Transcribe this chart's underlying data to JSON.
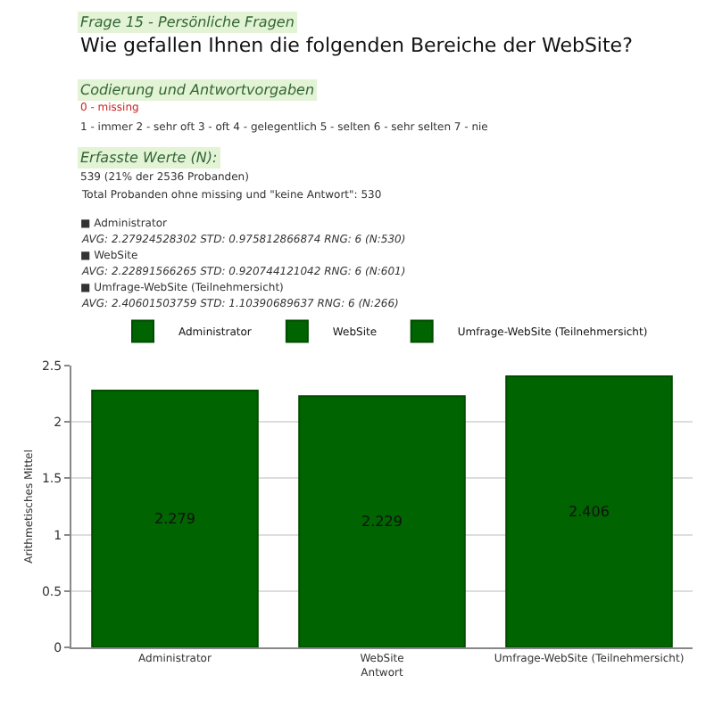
{
  "chart_data": {
    "type": "bar",
    "subtitle": "Frage 15 - Persönliche Fragen",
    "title": "Wie gefallen Ihnen die folgenden Bereiche der WebSite?",
    "annotations": [
      "Codierung und Antwortvorgaben",
      "0 - missing",
      "1 - immer 2 - sehr oft 3 - oft 4 - gelegentlich 5 - selten 6 - sehr selten 7 - nie",
      "Erfasste Werte (N):",
      "539 (21% der 2536 Probanden)",
      "Total Probanden ohne missing und \"keine Antwort\": 530",
      "■ Administrator",
      "AVG: 2.27924528302 STD: 0.975812866874 RNG: 6 (N:530)",
      "■ WebSite",
      "AVG: 2.22891566265 STD: 0.920744121042 RNG: 6 (N:601)",
      "■ Umfrage-WebSite (Teilnehmersicht)",
      "AVG: 2.40601503759 STD: 1.10390689637 RNG: 6 (N:266)"
    ],
    "categories": [
      "Administrator",
      "WebSite",
      "Umfrage-WebSite (Teilnehmersicht)"
    ],
    "series": [
      {
        "name": "Administrator",
        "color": "#006400",
        "values": [
          2.279,
          null,
          null
        ]
      },
      {
        "name": "WebSite",
        "color": "#006400",
        "values": [
          null,
          2.229,
          null
        ]
      },
      {
        "name": "Umfrage-WebSite (Teilnehmersicht)",
        "color": "#006400",
        "values": [
          null,
          null,
          2.406
        ]
      }
    ],
    "xlabel": "Antwort",
    "ylabel": "Arithmetisches Mittel",
    "ylim": [
      0,
      2.5
    ],
    "yticks": [
      0,
      0.5,
      1,
      1.5,
      2,
      2.5
    ],
    "grid": "y",
    "legend": "top",
    "data_labels": true
  }
}
